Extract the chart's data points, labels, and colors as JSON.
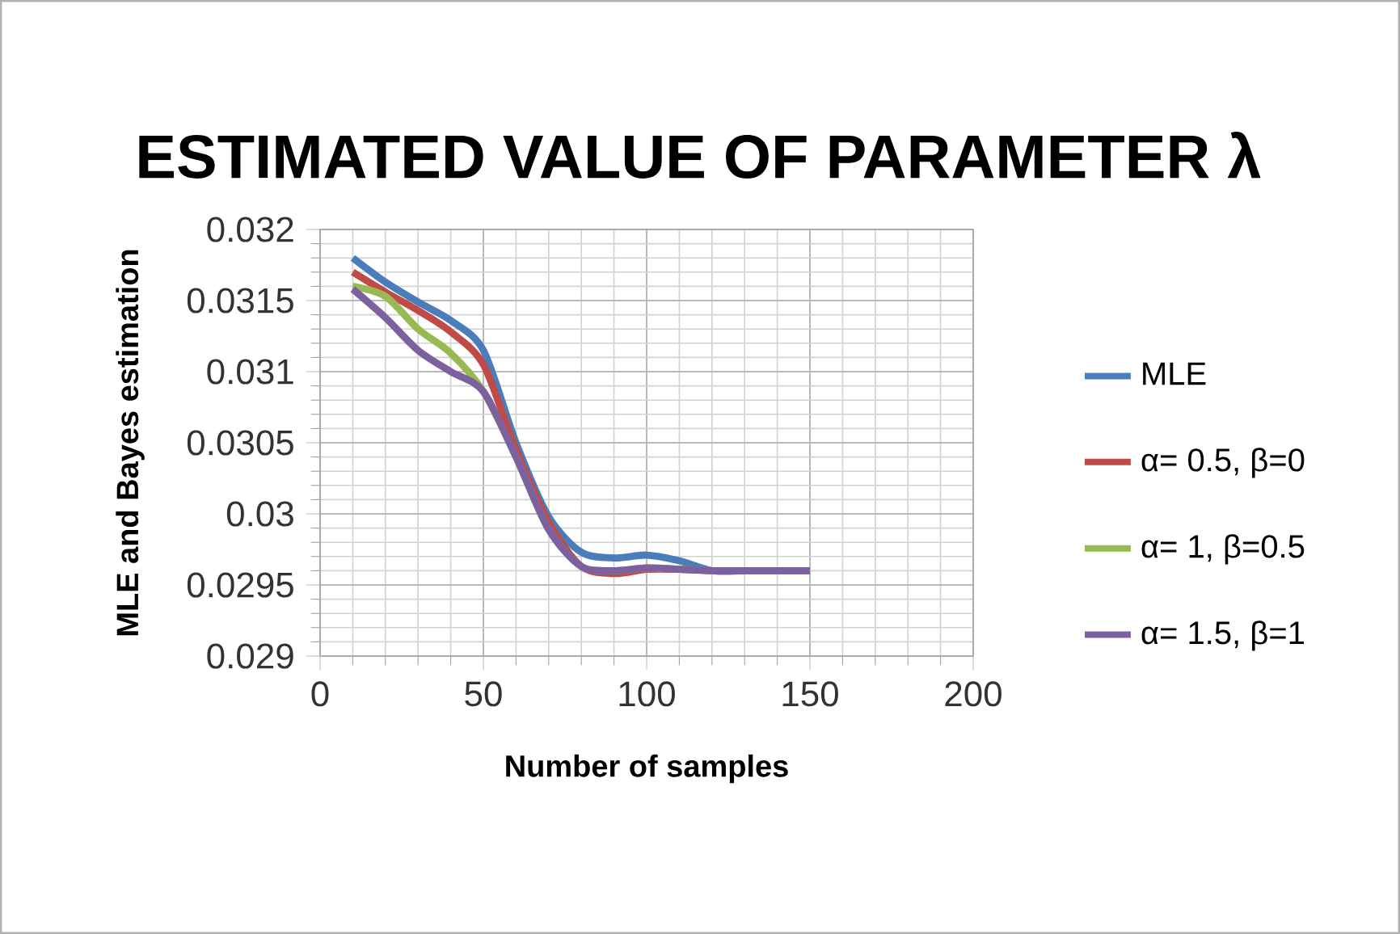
{
  "chart_data": {
    "type": "line",
    "title": "ESTIMATED VALUE OF PARAMETER λ",
    "xlabel": "Number of samples",
    "ylabel": "MLE and Bayes estimation",
    "x": [
      10,
      20,
      30,
      40,
      50,
      60,
      70,
      80,
      90,
      100,
      110,
      120,
      130,
      140,
      150
    ],
    "series": [
      {
        "name": "MLE",
        "color": "#4a7ebb",
        "values": [
          0.0318,
          0.03163,
          0.03149,
          0.03136,
          0.03115,
          0.0305,
          0.02998,
          0.02973,
          0.02969,
          0.02971,
          0.02967,
          0.0296,
          0.0296,
          0.0296,
          0.0296
        ]
      },
      {
        "name": "α= 0.5, β=0",
        "color": "#be4b48",
        "values": [
          0.0317,
          0.03156,
          0.03143,
          0.03128,
          0.03105,
          0.03045,
          0.02994,
          0.02963,
          0.02958,
          0.02961,
          0.02961,
          0.0296,
          null,
          null,
          null
        ]
      },
      {
        "name": "α= 1, β=0.5",
        "color": "#98b954",
        "values": [
          0.0316,
          0.03153,
          0.0313,
          0.03113,
          0.03086,
          0.0304,
          0.02989,
          0.02963,
          0.0296,
          0.02962,
          0.02961,
          0.0296,
          null,
          null,
          null
        ]
      },
      {
        "name": "α= 1.5, β=1",
        "color": "#7d60a0",
        "values": [
          0.03158,
          0.03138,
          0.03115,
          0.031,
          0.03086,
          0.0304,
          0.02989,
          0.02963,
          0.0296,
          0.02962,
          0.02961,
          0.0296,
          0.0296,
          0.0296,
          0.0296
        ]
      }
    ],
    "xlim": [
      0,
      200
    ],
    "xticks": [
      0,
      50,
      100,
      150,
      200
    ],
    "ylim": [
      0.029,
      0.032
    ],
    "yticks": [
      0.029,
      0.0295,
      0.03,
      0.0305,
      0.031,
      0.0315,
      0.032
    ],
    "grid": true,
    "legend": "right",
    "marker": "none",
    "line_style": "solid"
  }
}
